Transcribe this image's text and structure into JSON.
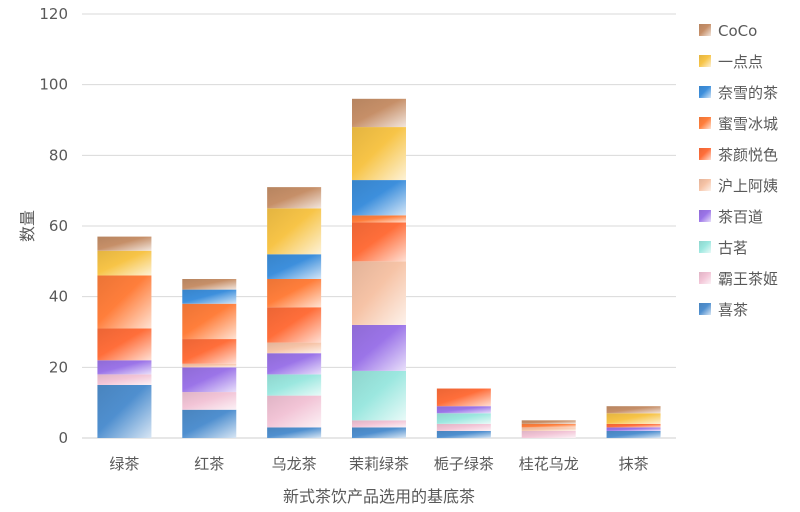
{
  "chart_data": {
    "type": "bar",
    "stacked": true,
    "title": "",
    "xlabel": "新式茶饮产品选用的基底茶",
    "ylabel": "数量",
    "ylim": [
      0,
      120
    ],
    "yticks": [
      0,
      20,
      40,
      60,
      80,
      100,
      120
    ],
    "grid": true,
    "legend_position": "right",
    "categories": [
      "绿茶",
      "红茶",
      "乌龙茶",
      "茉莉绿茶",
      "栀子绿茶",
      "桂花乌龙",
      "抹茶"
    ],
    "series": [
      {
        "name": "喜茶",
        "color": "#4f8fcf",
        "values": [
          15,
          8,
          3,
          3,
          2,
          0,
          2
        ]
      },
      {
        "name": "霸王茶姬",
        "color": "#f2c4d6",
        "values": [
          3,
          5,
          9,
          2,
          2,
          2,
          0
        ]
      },
      {
        "name": "古茗",
        "color": "#9be7df",
        "values": [
          0,
          0,
          6,
          14,
          3,
          0,
          0
        ]
      },
      {
        "name": "茶百道",
        "color": "#9b74e8",
        "values": [
          4,
          7,
          6,
          13,
          2,
          0,
          1
        ]
      },
      {
        "name": "沪上阿姨",
        "color": "#f6c3a6",
        "values": [
          0,
          1,
          3,
          18,
          0,
          1,
          0
        ]
      },
      {
        "name": "茶颜悦色",
        "color": "#ff6e3a",
        "values": [
          9,
          7,
          10,
          11,
          5,
          0,
          1
        ]
      },
      {
        "name": "蜜雪冰城",
        "color": "#ff7e3b",
        "values": [
          15,
          10,
          8,
          2,
          0,
          1,
          0
        ]
      },
      {
        "name": "奈雪的茶",
        "color": "#3d8fdc",
        "values": [
          0,
          4,
          7,
          10,
          0,
          0,
          0
        ]
      },
      {
        "name": "一点点",
        "color": "#f7c447",
        "values": [
          7,
          0,
          13,
          15,
          0,
          0,
          3
        ]
      },
      {
        "name": "CoCo",
        "color": "#c68f68",
        "values": [
          4,
          3,
          6,
          8,
          0,
          1,
          2
        ]
      }
    ]
  }
}
